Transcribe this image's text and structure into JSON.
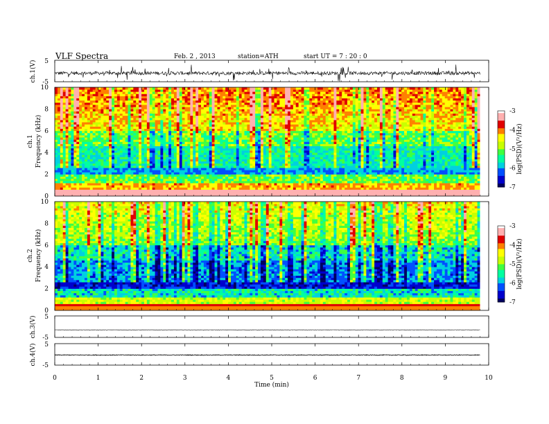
{
  "header": {
    "title": "VLF Spectra",
    "date": "Feb. 2 , 2013",
    "station": "station=ATH",
    "start": "start UT = 7 : 20 : 0"
  },
  "colors": {
    "spectrum": [
      "#000060",
      "#0000cc",
      "#0050ff",
      "#00d0e0",
      "#00ffa0",
      "#40ff40",
      "#c8ff00",
      "#ffff00",
      "#ff8000",
      "#e00000",
      "#ffb0b0",
      "#ffffff"
    ]
  },
  "chart_data": [
    {
      "type": "line",
      "ylabel": "ch.1(V)",
      "ylim": [
        -5,
        5
      ],
      "yticks": [
        "5",
        "-5"
      ],
      "level": -1,
      "noise": 1.6,
      "note": "noisy waveform with spikes"
    },
    {
      "type": "heatmap",
      "ylabel_line1": "ch.1",
      "ylabel_line2": "Frequency (kHz)",
      "ylim": [
        0,
        10
      ],
      "yticks": [
        "0",
        "2",
        "4",
        "6",
        "8",
        "10"
      ],
      "colorbar": {
        "label": "log(PSD)(V²/Hz)",
        "range": [
          -7,
          -3
        ],
        "ticks": [
          "-3",
          "-4",
          "-5",
          "-6",
          "-7"
        ]
      }
    },
    {
      "type": "heatmap",
      "ylabel_line1": "ch.2",
      "ylabel_line2": "Frequency (kHz)",
      "ylim": [
        0,
        10
      ],
      "yticks": [
        "0",
        "2",
        "4",
        "6",
        "8",
        "10"
      ],
      "colorbar": {
        "label": "log(PSD)(V²/Hz)",
        "range": [
          -7,
          -3
        ],
        "ticks": [
          "-3",
          "-4",
          "-5",
          "-6",
          "-7"
        ]
      }
    },
    {
      "type": "line",
      "ylabel": "ch.3(V)",
      "ylim": [
        -5,
        5
      ],
      "yticks": [
        "5",
        "-5"
      ],
      "level": -1.5,
      "noise": 0.1
    },
    {
      "type": "line",
      "ylabel": "ch.4(V)",
      "ylim": [
        -5,
        5
      ],
      "yticks": [
        "5",
        "-5"
      ],
      "level": -0.3,
      "noise": 0.35
    }
  ],
  "xaxis": {
    "label": "Time (min)",
    "range": [
      0,
      10
    ],
    "ticks": [
      "0",
      "1",
      "2",
      "3",
      "4",
      "5",
      "6",
      "7",
      "8",
      "9",
      "10"
    ],
    "data_end": 9.8
  }
}
